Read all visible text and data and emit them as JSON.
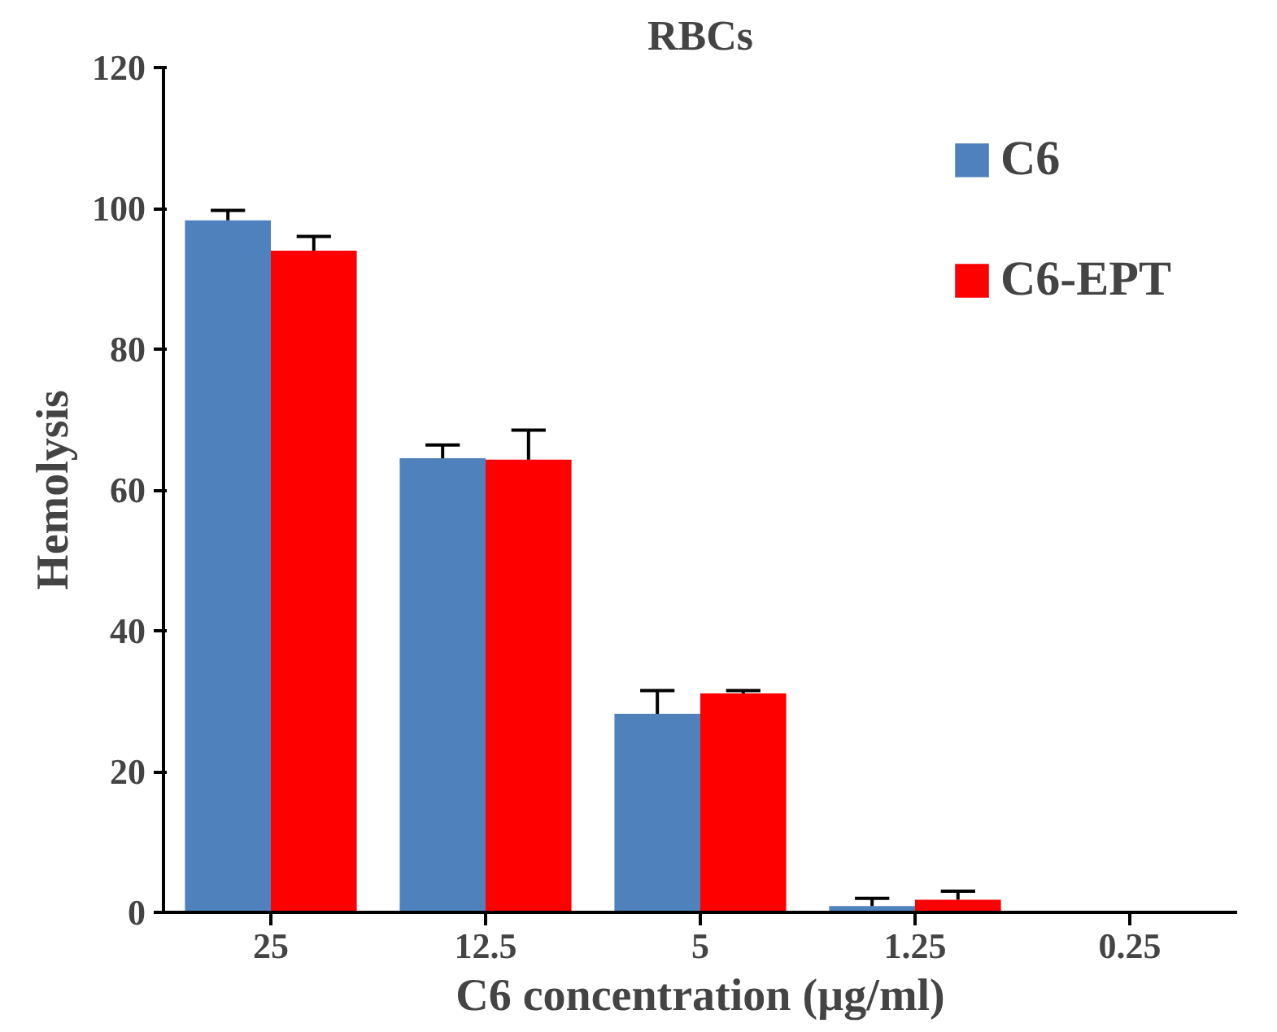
{
  "chart_data": {
    "type": "bar",
    "title": "RBCs",
    "xlabel": "C6 concentration (µg/ml)",
    "ylabel": "Hemolysis",
    "categories": [
      "25",
      "12.5",
      "5",
      "1.25",
      "0.25"
    ],
    "series": [
      {
        "name": "C6",
        "color": "#4f81bd",
        "values": [
          98.3,
          64.5,
          28.2,
          0.9,
          0.2
        ],
        "errors": [
          1.4,
          1.9,
          3.3,
          1.1,
          null
        ]
      },
      {
        "name": "C6-EPT",
        "color": "#ff0000",
        "values": [
          94.0,
          64.3,
          31.1,
          1.8,
          0.2
        ],
        "errors": [
          2.0,
          4.2,
          0.4,
          1.2,
          null
        ]
      }
    ],
    "ylim": [
      0,
      120
    ],
    "yticks": [
      0,
      20,
      40,
      60,
      80,
      100,
      120
    ],
    "grid": false,
    "legend": "top right"
  }
}
